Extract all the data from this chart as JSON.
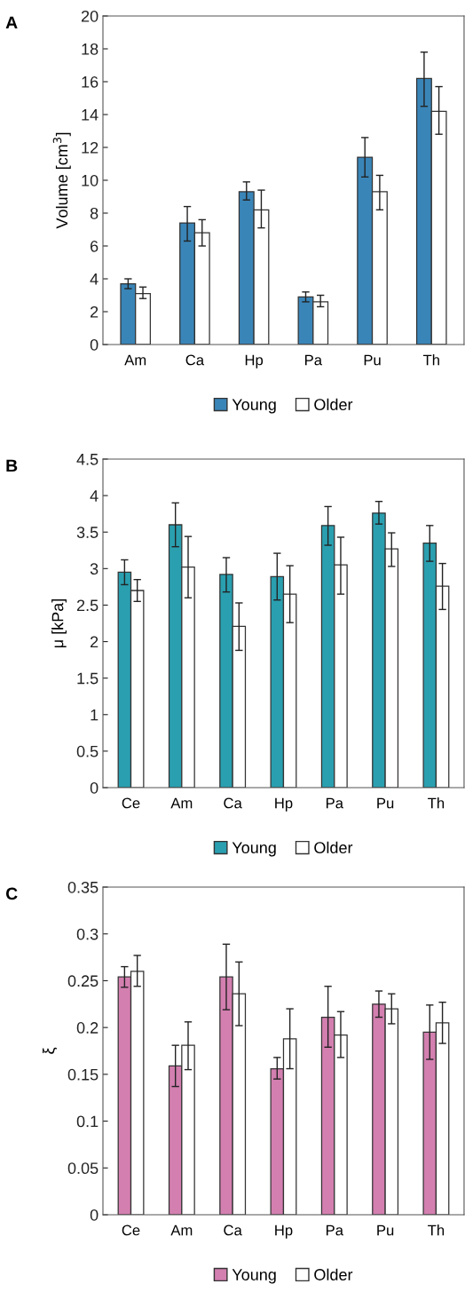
{
  "chart_data": [
    {
      "type": "bar",
      "title": "A",
      "ylabel": "Volume [cm$^{3}$]",
      "categories": [
        "Am",
        "Ca",
        "Hp",
        "Pa",
        "Pu",
        "Th"
      ],
      "ylim": [
        0,
        20
      ],
      "yticks": [
        0,
        2,
        4,
        6,
        8,
        10,
        12,
        14,
        16,
        18,
        20
      ],
      "legend": "bottom",
      "series": [
        {
          "name": "Young",
          "color": "#3a85b8",
          "values": [
            3.7,
            7.4,
            9.3,
            2.9,
            11.4,
            16.2
          ],
          "errors": [
            [
              3.4,
              4.0
            ],
            [
              6.3,
              8.4
            ],
            [
              8.8,
              9.9
            ],
            [
              2.6,
              3.2
            ],
            [
              10.2,
              12.6
            ],
            [
              14.5,
              17.8
            ]
          ]
        },
        {
          "name": "Older",
          "color": "#ffffff",
          "values": [
            3.1,
            6.8,
            8.2,
            2.6,
            9.3,
            14.2
          ],
          "errors": [
            [
              2.8,
              3.5
            ],
            [
              6.0,
              7.6
            ],
            [
              7.1,
              9.4
            ],
            [
              2.3,
              3.0
            ],
            [
              8.2,
              10.3
            ],
            [
              12.8,
              15.7
            ]
          ]
        }
      ]
    },
    {
      "type": "bar",
      "title": "B",
      "ylabel": "μ [kPa]",
      "categories": [
        "Ce",
        "Am",
        "Ca",
        "Hp",
        "Pa",
        "Pu",
        "Th"
      ],
      "ylim": [
        0,
        4.5
      ],
      "yticks": [
        0,
        0.5,
        1,
        1.5,
        2,
        2.5,
        3,
        3.5,
        4,
        4.5
      ],
      "legend": "bottom",
      "series": [
        {
          "name": "Young",
          "color": "#2a9fb0",
          "values": [
            2.95,
            3.6,
            2.92,
            2.89,
            3.59,
            3.76,
            3.35
          ],
          "errors": [
            [
              2.78,
              3.12
            ],
            [
              3.3,
              3.9
            ],
            [
              2.68,
              3.15
            ],
            [
              2.57,
              3.21
            ],
            [
              3.32,
              3.85
            ],
            [
              3.61,
              3.92
            ],
            [
              3.1,
              3.59
            ]
          ]
        },
        {
          "name": "Older",
          "color": "#ffffff",
          "values": [
            2.7,
            3.02,
            2.21,
            2.65,
            3.05,
            3.27,
            2.76
          ],
          "errors": [
            [
              2.55,
              2.85
            ],
            [
              2.6,
              3.44
            ],
            [
              1.88,
              2.53
            ],
            [
              2.26,
              3.04
            ],
            [
              2.65,
              3.43
            ],
            [
              3.03,
              3.49
            ],
            [
              2.44,
              3.07
            ]
          ]
        }
      ]
    },
    {
      "type": "bar",
      "title": "C",
      "ylabel": "ξ",
      "categories": [
        "Ce",
        "Am",
        "Ca",
        "Hp",
        "Pa",
        "Pu",
        "Th"
      ],
      "ylim": [
        0,
        0.35
      ],
      "yticks": [
        0,
        0.05,
        0.1,
        0.15,
        0.2,
        0.25,
        0.3,
        0.35
      ],
      "legend": "bottom",
      "series": [
        {
          "name": "Young",
          "color": "#d37fb0",
          "values": [
            0.254,
            0.159,
            0.254,
            0.156,
            0.211,
            0.225,
            0.195
          ],
          "errors": [
            [
              0.243,
              0.265
            ],
            [
              0.137,
              0.181
            ],
            [
              0.219,
              0.289
            ],
            [
              0.145,
              0.168
            ],
            [
              0.179,
              0.244
            ],
            [
              0.211,
              0.239
            ],
            [
              0.166,
              0.224
            ]
          ]
        },
        {
          "name": "Older",
          "color": "#ffffff",
          "values": [
            0.26,
            0.181,
            0.236,
            0.188,
            0.192,
            0.22,
            0.205
          ],
          "errors": [
            [
              0.244,
              0.277
            ],
            [
              0.155,
              0.206
            ],
            [
              0.202,
              0.27
            ],
            [
              0.156,
              0.22
            ],
            [
              0.168,
              0.217
            ],
            [
              0.204,
              0.236
            ],
            [
              0.183,
              0.227
            ]
          ]
        }
      ]
    }
  ]
}
